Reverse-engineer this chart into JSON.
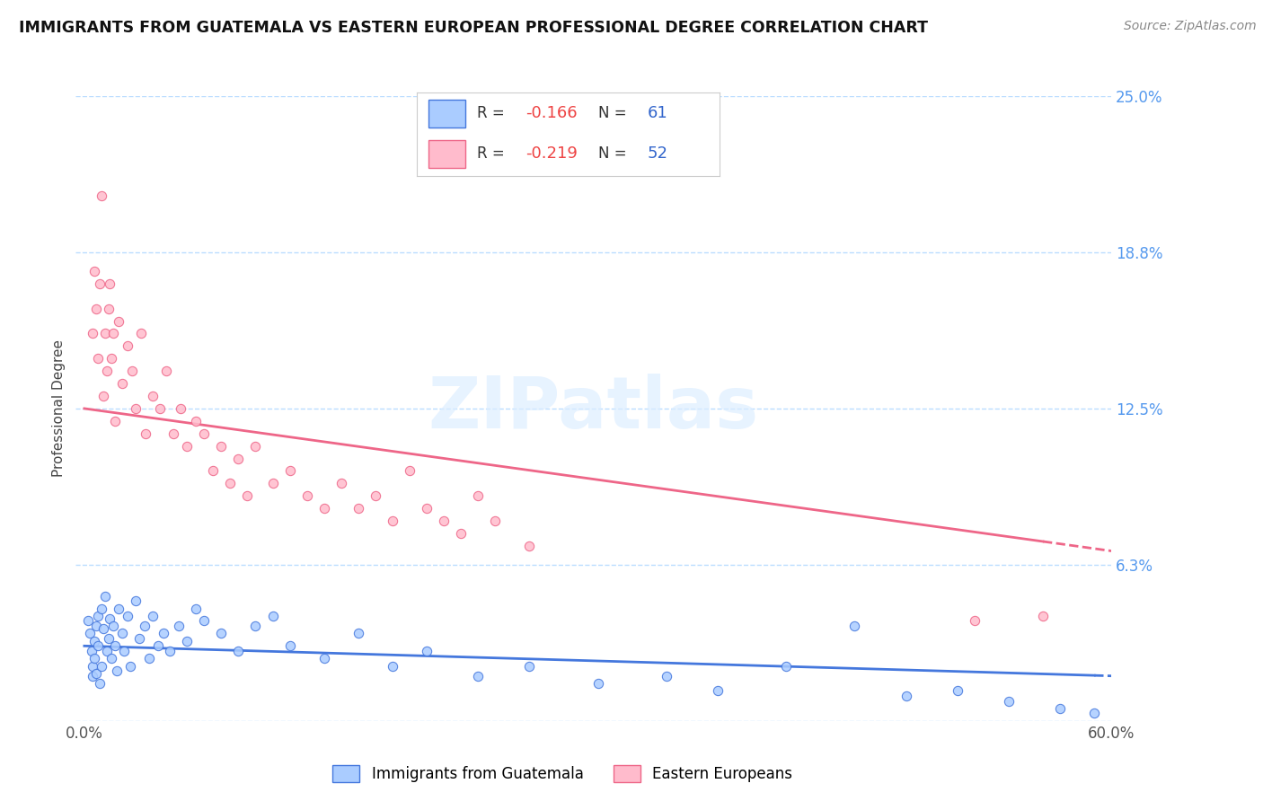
{
  "title": "IMMIGRANTS FROM GUATEMALA VS EASTERN EUROPEAN PROFESSIONAL DEGREE CORRELATION CHART",
  "source": "Source: ZipAtlas.com",
  "ylabel": "Professional Degree",
  "series1_label": "Immigrants from Guatemala",
  "series2_label": "Eastern Europeans",
  "R1": -0.166,
  "N1": 61,
  "R2": -0.219,
  "N2": 52,
  "color1": "#aaccff",
  "color2": "#ffbbcc",
  "line1_color": "#4477dd",
  "line2_color": "#ee6688",
  "watermark_text": "ZIPatlas",
  "watermark_color": "#ddeeff",
  "xlim": [
    0.0,
    0.6
  ],
  "ylim": [
    0.0,
    0.25
  ],
  "ytick_vals": [
    0.0,
    0.0625,
    0.125,
    0.1875,
    0.25
  ],
  "ytick_labels": [
    "",
    "6.3%",
    "12.5%",
    "18.8%",
    "25.0%"
  ],
  "xtick_vals": [
    0.0,
    0.6
  ],
  "xtick_labels": [
    "0.0%",
    "60.0%"
  ],
  "background_color": "#ffffff",
  "grid_color": "#bbddff",
  "title_color": "#111111",
  "source_color": "#888888",
  "ylabel_color": "#444444",
  "tick_color": "#5599ee",
  "legend_R_color": "#ee4444",
  "legend_N_color": "#3366cc",
  "legend_text_color": "#333333",
  "line1_intercept": 0.03,
  "line1_slope": -0.02,
  "line2_intercept": 0.125,
  "line2_slope": -0.095,
  "s1_x": [
    0.002,
    0.003,
    0.004,
    0.005,
    0.005,
    0.006,
    0.006,
    0.007,
    0.007,
    0.008,
    0.008,
    0.009,
    0.01,
    0.01,
    0.011,
    0.012,
    0.013,
    0.014,
    0.015,
    0.016,
    0.017,
    0.018,
    0.019,
    0.02,
    0.022,
    0.023,
    0.025,
    0.027,
    0.03,
    0.032,
    0.035,
    0.038,
    0.04,
    0.043,
    0.046,
    0.05,
    0.055,
    0.06,
    0.065,
    0.07,
    0.08,
    0.09,
    0.1,
    0.11,
    0.12,
    0.14,
    0.16,
    0.18,
    0.2,
    0.23,
    0.26,
    0.3,
    0.34,
    0.37,
    0.41,
    0.45,
    0.48,
    0.51,
    0.54,
    0.57,
    0.59
  ],
  "s1_y": [
    0.04,
    0.035,
    0.028,
    0.022,
    0.018,
    0.032,
    0.025,
    0.038,
    0.019,
    0.042,
    0.03,
    0.015,
    0.045,
    0.022,
    0.037,
    0.05,
    0.028,
    0.033,
    0.041,
    0.025,
    0.038,
    0.03,
    0.02,
    0.045,
    0.035,
    0.028,
    0.042,
    0.022,
    0.048,
    0.033,
    0.038,
    0.025,
    0.042,
    0.03,
    0.035,
    0.028,
    0.038,
    0.032,
    0.045,
    0.04,
    0.035,
    0.028,
    0.038,
    0.042,
    0.03,
    0.025,
    0.035,
    0.022,
    0.028,
    0.018,
    0.022,
    0.015,
    0.018,
    0.012,
    0.022,
    0.038,
    0.01,
    0.012,
    0.008,
    0.005,
    0.003
  ],
  "s2_x": [
    0.005,
    0.006,
    0.007,
    0.008,
    0.009,
    0.01,
    0.011,
    0.012,
    0.013,
    0.014,
    0.015,
    0.016,
    0.017,
    0.018,
    0.02,
    0.022,
    0.025,
    0.028,
    0.03,
    0.033,
    0.036,
    0.04,
    0.044,
    0.048,
    0.052,
    0.056,
    0.06,
    0.065,
    0.07,
    0.075,
    0.08,
    0.085,
    0.09,
    0.095,
    0.1,
    0.11,
    0.12,
    0.13,
    0.14,
    0.15,
    0.16,
    0.17,
    0.18,
    0.19,
    0.2,
    0.21,
    0.22,
    0.23,
    0.24,
    0.26,
    0.52,
    0.56
  ],
  "s2_y": [
    0.155,
    0.18,
    0.165,
    0.145,
    0.175,
    0.21,
    0.13,
    0.155,
    0.14,
    0.165,
    0.175,
    0.145,
    0.155,
    0.12,
    0.16,
    0.135,
    0.15,
    0.14,
    0.125,
    0.155,
    0.115,
    0.13,
    0.125,
    0.14,
    0.115,
    0.125,
    0.11,
    0.12,
    0.115,
    0.1,
    0.11,
    0.095,
    0.105,
    0.09,
    0.11,
    0.095,
    0.1,
    0.09,
    0.085,
    0.095,
    0.085,
    0.09,
    0.08,
    0.1,
    0.085,
    0.08,
    0.075,
    0.09,
    0.08,
    0.07,
    0.04,
    0.042
  ]
}
